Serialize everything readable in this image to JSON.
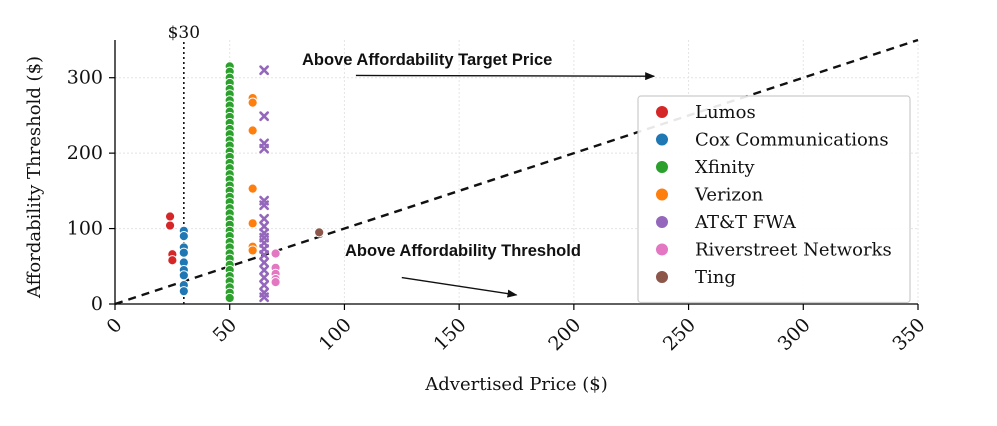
{
  "chart_data": {
    "type": "scatter",
    "xlabel": "Advertised Price ($)",
    "ylabel": "Affordability Threshold ($)",
    "xlim": [
      0,
      350
    ],
    "ylim": [
      0,
      350
    ],
    "x_ticks": [
      0,
      50,
      100,
      150,
      200,
      250,
      300,
      350
    ],
    "y_ticks": [
      0,
      100,
      200,
      300
    ],
    "grid": true,
    "legend_position": "center-right",
    "reference_line": {
      "type": "diagonal",
      "label": "y = x",
      "style": "dashed"
    },
    "vertical_marker": {
      "x": 30,
      "label": "$30",
      "style": "dotted"
    },
    "annotations": [
      {
        "text": "Above Affordability Target Price",
        "arrow_from": [
          105,
          303
        ],
        "arrow_to": [
          235,
          302
        ]
      },
      {
        "text": "Above Affordability Threshold",
        "arrow_from": [
          125,
          35
        ],
        "arrow_to": [
          175,
          12
        ]
      }
    ],
    "series": [
      {
        "name": "Lumos",
        "color": "#d62728",
        "marker": "circle",
        "points": [
          [
            24,
            116
          ],
          [
            24,
            104
          ],
          [
            25,
            66
          ],
          [
            25,
            58
          ]
        ]
      },
      {
        "name": "Cox Communications",
        "color": "#1f77b4",
        "marker": "circle",
        "points": [
          [
            30,
            97
          ],
          [
            30,
            90
          ],
          [
            30,
            75
          ],
          [
            30,
            68
          ],
          [
            30,
            55
          ],
          [
            30,
            45
          ],
          [
            30,
            38
          ],
          [
            30,
            25
          ],
          [
            30,
            17
          ]
        ]
      },
      {
        "name": "Xfinity",
        "color": "#2ca02c",
        "marker": "circle",
        "points": [
          [
            50,
            315
          ],
          [
            50,
            308
          ],
          [
            50,
            300
          ],
          [
            50,
            293
          ],
          [
            50,
            285
          ],
          [
            50,
            278
          ],
          [
            50,
            270
          ],
          [
            50,
            263
          ],
          [
            50,
            255
          ],
          [
            50,
            248
          ],
          [
            50,
            240
          ],
          [
            50,
            232
          ],
          [
            50,
            225
          ],
          [
            50,
            217
          ],
          [
            50,
            210
          ],
          [
            50,
            202
          ],
          [
            50,
            195
          ],
          [
            50,
            187
          ],
          [
            50,
            180
          ],
          [
            50,
            172
          ],
          [
            50,
            165
          ],
          [
            50,
            157
          ],
          [
            50,
            150
          ],
          [
            50,
            142
          ],
          [
            50,
            135
          ],
          [
            50,
            127
          ],
          [
            50,
            120
          ],
          [
            50,
            112
          ],
          [
            50,
            105
          ],
          [
            50,
            97
          ],
          [
            50,
            90
          ],
          [
            50,
            82
          ],
          [
            50,
            75
          ],
          [
            50,
            67
          ],
          [
            50,
            60
          ],
          [
            50,
            52
          ],
          [
            50,
            45
          ],
          [
            50,
            37
          ],
          [
            50,
            30
          ],
          [
            50,
            22
          ],
          [
            50,
            15
          ],
          [
            50,
            8
          ]
        ]
      },
      {
        "name": "Verizon",
        "color": "#ff7f0e",
        "marker": "circle",
        "points": [
          [
            60,
            273
          ],
          [
            60,
            267
          ],
          [
            60,
            230
          ],
          [
            60,
            153
          ],
          [
            60,
            107
          ],
          [
            60,
            76
          ],
          [
            60,
            71
          ]
        ]
      },
      {
        "name": "AT&T FWA",
        "color": "#9467bd",
        "marker": "x",
        "points": [
          [
            65,
            310
          ],
          [
            65,
            249
          ],
          [
            65,
            213
          ],
          [
            65,
            206
          ],
          [
            65,
            137
          ],
          [
            65,
            131
          ],
          [
            65,
            113
          ],
          [
            65,
            103
          ],
          [
            65,
            94
          ],
          [
            65,
            88
          ],
          [
            65,
            81
          ],
          [
            65,
            73
          ],
          [
            65,
            65
          ],
          [
            65,
            55
          ],
          [
            65,
            45
          ],
          [
            65,
            35
          ],
          [
            65,
            25
          ],
          [
            65,
            15
          ],
          [
            65,
            9
          ]
        ]
      },
      {
        "name": "Riverstreet Networks",
        "color": "#e377c2",
        "marker": "circle",
        "points": [
          [
            70,
            67
          ],
          [
            70,
            48
          ],
          [
            70,
            40
          ],
          [
            70,
            33
          ],
          [
            70,
            29
          ]
        ]
      },
      {
        "name": "Ting",
        "color": "#8c564b",
        "marker": "circle",
        "points": [
          [
            89,
            95
          ]
        ]
      }
    ]
  }
}
